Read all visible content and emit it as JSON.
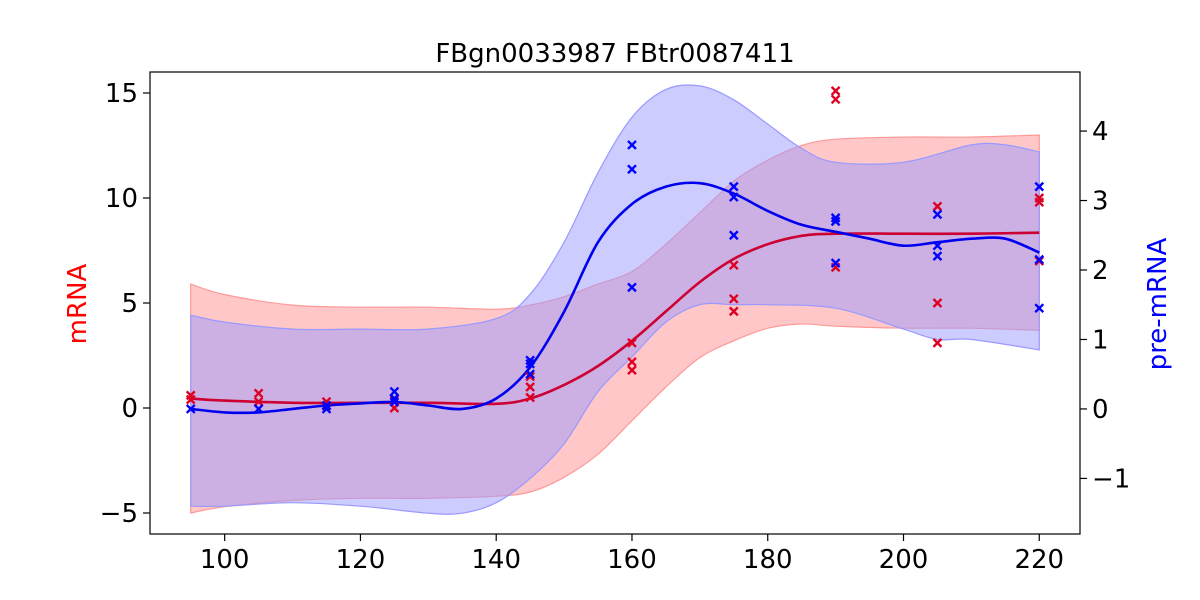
{
  "chart_data": {
    "type": "line",
    "title": "FBgn0033987 FBtr0087411",
    "xlabel": "",
    "xlim": [
      89,
      226
    ],
    "xticks": [
      100,
      120,
      140,
      160,
      180,
      200,
      220
    ],
    "left_axis": {
      "label": "mRNA",
      "color": "#ff0000",
      "ylim": [
        -6,
        16
      ],
      "ticks": [
        -5,
        0,
        5,
        10,
        15
      ]
    },
    "right_axis": {
      "label": "pre-mRNA",
      "color": "#0000ff",
      "ylim": [
        -1.8,
        4.85
      ],
      "ticks": [
        -1,
        0,
        1,
        2,
        3,
        4
      ]
    },
    "series": [
      {
        "name": "mRNA",
        "axis": "left",
        "line_color": "#cc0033",
        "band_color": "#ff9999",
        "points": [
          [
            95,
            0.6
          ],
          [
            95,
            0.4
          ],
          [
            105,
            0.7
          ],
          [
            105,
            0.3
          ],
          [
            115,
            0.3
          ],
          [
            115,
            0.1
          ],
          [
            125,
            0.4
          ],
          [
            125,
            0.0
          ],
          [
            145,
            0.5
          ],
          [
            145,
            1.0
          ],
          [
            145,
            1.5
          ],
          [
            160,
            1.8
          ],
          [
            160,
            2.2
          ],
          [
            160,
            3.1
          ],
          [
            175,
            4.6
          ],
          [
            175,
            5.2
          ],
          [
            175,
            6.8
          ],
          [
            190,
            14.7
          ],
          [
            190,
            15.1
          ],
          [
            190,
            6.7
          ],
          [
            205,
            9.6
          ],
          [
            205,
            5.0
          ],
          [
            205,
            3.1
          ],
          [
            220,
            9.8
          ],
          [
            220,
            10.0
          ],
          [
            220,
            7.0
          ]
        ],
        "mean": [
          [
            95,
            0.45
          ],
          [
            100,
            0.35
          ],
          [
            110,
            0.25
          ],
          [
            120,
            0.25
          ],
          [
            130,
            0.25
          ],
          [
            140,
            0.2
          ],
          [
            145,
            0.45
          ],
          [
            150,
            1.1
          ],
          [
            155,
            2.0
          ],
          [
            160,
            3.2
          ],
          [
            165,
            4.6
          ],
          [
            170,
            6.0
          ],
          [
            175,
            7.1
          ],
          [
            180,
            7.8
          ],
          [
            185,
            8.2
          ],
          [
            190,
            8.3
          ],
          [
            200,
            8.3
          ],
          [
            210,
            8.3
          ],
          [
            220,
            8.35
          ]
        ],
        "upper": [
          [
            95,
            5.9
          ],
          [
            100,
            5.4
          ],
          [
            110,
            4.9
          ],
          [
            120,
            4.8
          ],
          [
            130,
            4.8
          ],
          [
            140,
            4.7
          ],
          [
            145,
            4.9
          ],
          [
            150,
            5.3
          ],
          [
            155,
            5.9
          ],
          [
            160,
            6.5
          ],
          [
            165,
            7.8
          ],
          [
            170,
            9.3
          ],
          [
            175,
            10.8
          ],
          [
            180,
            11.8
          ],
          [
            185,
            12.5
          ],
          [
            190,
            12.8
          ],
          [
            200,
            12.9
          ],
          [
            210,
            12.9
          ],
          [
            220,
            13.0
          ]
        ],
        "lower": [
          [
            95,
            -5.0
          ],
          [
            100,
            -4.7
          ],
          [
            110,
            -4.4
          ],
          [
            120,
            -4.3
          ],
          [
            130,
            -4.3
          ],
          [
            140,
            -4.2
          ],
          [
            145,
            -4.0
          ],
          [
            150,
            -3.3
          ],
          [
            155,
            -2.2
          ],
          [
            160,
            -0.6
          ],
          [
            165,
            1.0
          ],
          [
            170,
            2.4
          ],
          [
            175,
            3.2
          ],
          [
            180,
            3.8
          ],
          [
            185,
            4.0
          ],
          [
            190,
            3.9
          ],
          [
            200,
            3.8
          ],
          [
            210,
            3.8
          ],
          [
            220,
            3.7
          ]
        ]
      },
      {
        "name": "pre-mRNA",
        "axis": "right",
        "line_color": "#0000ee",
        "band_color": "#9999ff",
        "points": [
          [
            95,
            0.0
          ],
          [
            105,
            0.0
          ],
          [
            115,
            0.05
          ],
          [
            115,
            0.0
          ],
          [
            125,
            0.25
          ],
          [
            125,
            0.15
          ],
          [
            125,
            0.1
          ],
          [
            145,
            0.7
          ],
          [
            145,
            0.5
          ],
          [
            145,
            0.65
          ],
          [
            160,
            3.8
          ],
          [
            160,
            3.45
          ],
          [
            160,
            1.75
          ],
          [
            175,
            3.2
          ],
          [
            175,
            3.05
          ],
          [
            175,
            2.5
          ],
          [
            190,
            2.75
          ],
          [
            190,
            2.7
          ],
          [
            190,
            2.1
          ],
          [
            205,
            2.8
          ],
          [
            205,
            2.35
          ],
          [
            205,
            2.2
          ],
          [
            220,
            3.2
          ],
          [
            220,
            2.15
          ],
          [
            220,
            1.45
          ]
        ],
        "mean": [
          [
            95,
            0.0
          ],
          [
            100,
            -0.05
          ],
          [
            105,
            -0.05
          ],
          [
            110,
            0.0
          ],
          [
            115,
            0.05
          ],
          [
            120,
            0.08
          ],
          [
            125,
            0.1
          ],
          [
            130,
            0.05
          ],
          [
            135,
            0.0
          ],
          [
            140,
            0.15
          ],
          [
            145,
            0.6
          ],
          [
            150,
            1.4
          ],
          [
            155,
            2.4
          ],
          [
            160,
            2.95
          ],
          [
            165,
            3.2
          ],
          [
            170,
            3.25
          ],
          [
            175,
            3.1
          ],
          [
            180,
            2.85
          ],
          [
            185,
            2.65
          ],
          [
            190,
            2.55
          ],
          [
            195,
            2.45
          ],
          [
            200,
            2.35
          ],
          [
            205,
            2.4
          ],
          [
            210,
            2.45
          ],
          [
            215,
            2.45
          ],
          [
            220,
            2.25
          ]
        ],
        "upper": [
          [
            95,
            1.35
          ],
          [
            100,
            1.25
          ],
          [
            110,
            1.15
          ],
          [
            120,
            1.15
          ],
          [
            130,
            1.15
          ],
          [
            140,
            1.3
          ],
          [
            145,
            1.65
          ],
          [
            150,
            2.4
          ],
          [
            155,
            3.4
          ],
          [
            160,
            4.2
          ],
          [
            165,
            4.6
          ],
          [
            170,
            4.65
          ],
          [
            175,
            4.45
          ],
          [
            180,
            4.1
          ],
          [
            185,
            3.75
          ],
          [
            190,
            3.55
          ],
          [
            200,
            3.55
          ],
          [
            210,
            3.8
          ],
          [
            215,
            3.8
          ],
          [
            220,
            3.7
          ]
        ],
        "lower": [
          [
            95,
            -1.4
          ],
          [
            100,
            -1.4
          ],
          [
            110,
            -1.35
          ],
          [
            120,
            -1.4
          ],
          [
            130,
            -1.5
          ],
          [
            135,
            -1.5
          ],
          [
            140,
            -1.35
          ],
          [
            145,
            -1.0
          ],
          [
            150,
            -0.5
          ],
          [
            155,
            0.25
          ],
          [
            160,
            0.75
          ],
          [
            165,
            1.25
          ],
          [
            170,
            1.5
          ],
          [
            175,
            1.5
          ],
          [
            180,
            1.5
          ],
          [
            190,
            1.45
          ],
          [
            200,
            1.15
          ],
          [
            205,
            1.0
          ],
          [
            210,
            1.0
          ],
          [
            220,
            0.85
          ]
        ]
      }
    ]
  }
}
